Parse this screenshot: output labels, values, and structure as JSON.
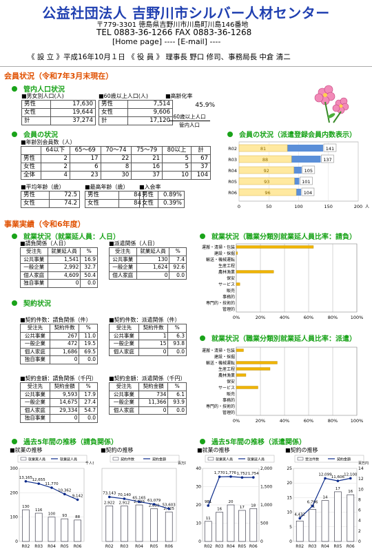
{
  "header": {
    "title": "公益社団法人 吉野川市シルバー人材センター",
    "address": "〒779-3301 徳島県吉野川市川島町川島146番地",
    "tel": "TEL 0883-36-1266 FAX 0883-36-1268",
    "links": "[Home page] ---- [E-mail] ----",
    "founded": "《 設 立 》平成16年10月１日 《 役 員 》 理事長 野口 修司、事務局長 中倉 清二"
  },
  "members_status": {
    "heading": "会員状況（令和7年3月末現在）",
    "pop_heading": "管内人口状況",
    "pop_table": {
      "caption": "■男女別人口(人)",
      "rows": [
        [
          "男性",
          "17,630"
        ],
        [
          "女性",
          "19,644"
        ],
        [
          "計",
          "37,274"
        ]
      ]
    },
    "pop60_table": {
      "caption": "■60歳以上人口(人)",
      "rows": [
        [
          "男性",
          "7,514"
        ],
        [
          "女性",
          "9,606"
        ],
        [
          "計",
          "17,120"
        ]
      ]
    },
    "aging": {
      "caption": "■高齢化率",
      "value": "45.9%",
      "note1": "60歳以上人口",
      "note2": "管内人口"
    },
    "member_heading": "会員の状況",
    "age_table": {
      "caption": "■年齢別会員数（人）",
      "header": [
        "",
        "64以下",
        "65～69",
        "70～74",
        "75～79",
        "80以上",
        "計"
      ],
      "rows": [
        [
          "男性",
          "2",
          "17",
          "22",
          "21",
          "5",
          "67"
        ],
        [
          "女性",
          "2",
          "6",
          "8",
          "16",
          "5",
          "37"
        ],
        [
          "全体",
          "4",
          "23",
          "30",
          "37",
          "10",
          "104"
        ]
      ]
    },
    "avg_age": {
      "caption": "■平均年齢（歳）",
      "rows": [
        [
          "男性",
          "72.5"
        ],
        [
          "女性",
          "74.2"
        ]
      ]
    },
    "max_age": {
      "caption": "■最高年齢（歳）",
      "rows": [
        [
          "男性",
          "84"
        ],
        [
          "女性",
          "84"
        ]
      ]
    },
    "join_rate": {
      "caption": "■入会率",
      "rows": [
        [
          "男性",
          "0.89%"
        ],
        [
          "女性",
          "0.39%"
        ]
      ]
    },
    "dispatch_heading": "会員の状況（派遣登録会員内数表示）"
  },
  "chart_members": {
    "type": "bar",
    "categories": [
      "R02",
      "R03",
      "R04",
      "R05",
      "R06"
    ],
    "series": [
      {
        "values": [
          81,
          88,
          92,
          93,
          96
        ]
      },
      {
        "values": [
          141,
          137,
          105,
          101,
          104
        ]
      }
    ],
    "xlim": [
      0,
      200
    ],
    "ticks": [
      "0",
      "50",
      "100",
      "150",
      "200"
    ],
    "unit": "人"
  },
  "results": {
    "heading": "事業実績（令和6年度）",
    "emp_heading": "就業状況（就業延人員：人日）",
    "emp_req": {
      "caption": "■請負関係（人日）",
      "header": [
        "受注先",
        "就業延人員",
        "%"
      ],
      "rows": [
        [
          "公共事業",
          "1,541",
          "16.9"
        ],
        [
          "一般企業",
          "2,992",
          "32.7"
        ],
        [
          "個人家庭",
          "4,609",
          "50.4"
        ],
        [
          "独自事業",
          "0",
          "0.0"
        ]
      ]
    },
    "emp_disp": {
      "caption": "■派遣関係（人日）",
      "header": [
        "受注先",
        "就業延人員",
        "%"
      ],
      "rows": [
        [
          "公共事業",
          "130",
          "7.4"
        ],
        [
          "一般企業",
          "1,624",
          "92.6"
        ],
        [
          "個人家庭",
          "0",
          "0.0"
        ]
      ]
    },
    "contract_heading": "契約状況",
    "cnt_req": {
      "caption": "■契約件数：請負関係（件）",
      "header": [
        "受注先",
        "契約件数",
        "%"
      ],
      "rows": [
        [
          "公共事業",
          "267",
          "11.0"
        ],
        [
          "一般企業",
          "472",
          "19.5"
        ],
        [
          "個人家庭",
          "1,686",
          "69.5"
        ],
        [
          "独自事業",
          "0",
          "0.0"
        ]
      ]
    },
    "cnt_disp": {
      "caption": "■契約件数：派遣関係（件）",
      "header": [
        "受注先",
        "契約件数",
        "%"
      ],
      "rows": [
        [
          "公共事業",
          "1",
          "6.3"
        ],
        [
          "一般企業",
          "15",
          "93.8"
        ],
        [
          "個人家庭",
          "0",
          "0.0"
        ]
      ]
    },
    "amt_req": {
      "caption": "■契約金額：請負関係（千円）",
      "header": [
        "受注先",
        "契約金額",
        "%"
      ],
      "rows": [
        [
          "公共事業",
          "9,593",
          "17.9"
        ],
        [
          "一般企業",
          "14,675",
          "27.4"
        ],
        [
          "個人家庭",
          "29,334",
          "54.7"
        ],
        [
          "独自事業",
          "0",
          "0.0"
        ]
      ]
    },
    "amt_disp": {
      "caption": "■契約金額：派遣関係（千円）",
      "header": [
        "受注先",
        "契約金額",
        "%"
      ],
      "rows": [
        [
          "公共事業",
          "734",
          "6.1"
        ],
        [
          "一般企業",
          "11,366",
          "93.9"
        ],
        [
          "個人家庭",
          "0",
          "0.0"
        ]
      ]
    },
    "job_req_heading": "就業状況（職業分類別就業延人員比率：請負）",
    "job_disp_heading": "就業状況（職業分類別就業延人員比率：派遣）",
    "trend_req_heading": "過去5年間の推移（請負関係）",
    "trend_disp_heading": "過去5年間の推移（派遣関係）",
    "emp_trend_label": "■就業の推移",
    "con_trend_label": "■契約の推移"
  },
  "job_categories": [
    "運搬・清掃・包装",
    "建設・採掘",
    "輸送・機械運転",
    "生産工程",
    "農林漁業",
    "保安",
    "サービス",
    "販売",
    "事務的",
    "専門的・技術的",
    "管理的"
  ],
  "pct_ticks": [
    "0%",
    "20%",
    "40%",
    "60%",
    "80%",
    "100%"
  ],
  "chart_job_req": {
    "type": "bar",
    "values": [
      64,
      1,
      0,
      0,
      31,
      0,
      3,
      0,
      0,
      0,
      0
    ]
  },
  "chart_job_disp": {
    "type": "bar",
    "values": [
      6,
      0,
      34,
      28,
      8,
      0,
      18,
      0,
      0,
      0,
      0
    ]
  },
  "years": [
    "R02",
    "R03",
    "R04",
    "R05",
    "R06"
  ],
  "chart_trend_req_emp": {
    "type": "bar+line",
    "legend": [
      "就業実人員",
      "就業延人員"
    ],
    "unit": "千人日",
    "bar": [
      130,
      116,
      100,
      93,
      88
    ],
    "line_labels": [
      "13,165",
      "12,655",
      "11,770",
      "10,362",
      "9,142"
    ],
    "line": [
      13.165,
      12.655,
      11.77,
      10.362,
      9.142
    ],
    "ylim": [
      0,
      300
    ],
    "y2lim": [
      0,
      16
    ],
    "yticks": [
      "0",
      "100",
      "200",
      "300"
    ]
  },
  "chart_trend_req_con": {
    "type": "bar+line",
    "legend": [
      "契約件数",
      "契約金額"
    ],
    "unit": "百万円",
    "bar_labels": [
      "2,922",
      "2,912",
      "2,999",
      "2,689",
      "2,425"
    ],
    "bar": [
      2922,
      2912,
      2999,
      2689,
      2425
    ],
    "line_labels": [
      "73,143",
      "70,140",
      "65,165",
      "61,079",
      "53,603"
    ],
    "line": [
      73.143,
      70.14,
      65.165,
      61.079,
      53.603
    ],
    "ylim": [
      0,
      6000
    ],
    "y2lim": [
      0,
      120
    ]
  },
  "chart_trend_disp_emp": {
    "type": "bar+line",
    "legend": [
      "就業実人員",
      "就業延人員"
    ],
    "bar": [
      11,
      16,
      20,
      17,
      18
    ],
    "line_labels": [
      "981",
      "1,770",
      "1,776",
      "1,752",
      "1,754"
    ],
    "line": [
      981,
      1770,
      1776,
      1752,
      1754
    ],
    "ylim": [
      0,
      40
    ],
    "y2lim": [
      0,
      2000
    ],
    "yticks": [
      "0",
      "10",
      "20",
      "30",
      "40"
    ],
    "y2ticks": [
      "0",
      "500",
      "1,000",
      "1,500",
      "2,000"
    ]
  },
  "chart_trend_disp_con": {
    "type": "bar+line",
    "legend": [
      "受注件数",
      "契約金額"
    ],
    "unit": "百万円",
    "bar": [
      7,
      11,
      14,
      17,
      16
    ],
    "line_labels": [
      "4,432",
      "6,796",
      "12,099",
      "11,606",
      "12,100"
    ],
    "line": [
      4.432,
      6.796,
      12.099,
      11.606,
      12.1
    ],
    "ylim": [
      0,
      25
    ],
    "y2lim": [
      0,
      14
    ],
    "yticks": [
      "0",
      "5",
      "10",
      "15",
      "20",
      "25"
    ],
    "y2ticks": [
      "0",
      "2",
      "4",
      "6",
      "8",
      "10",
      "12",
      "14"
    ]
  }
}
